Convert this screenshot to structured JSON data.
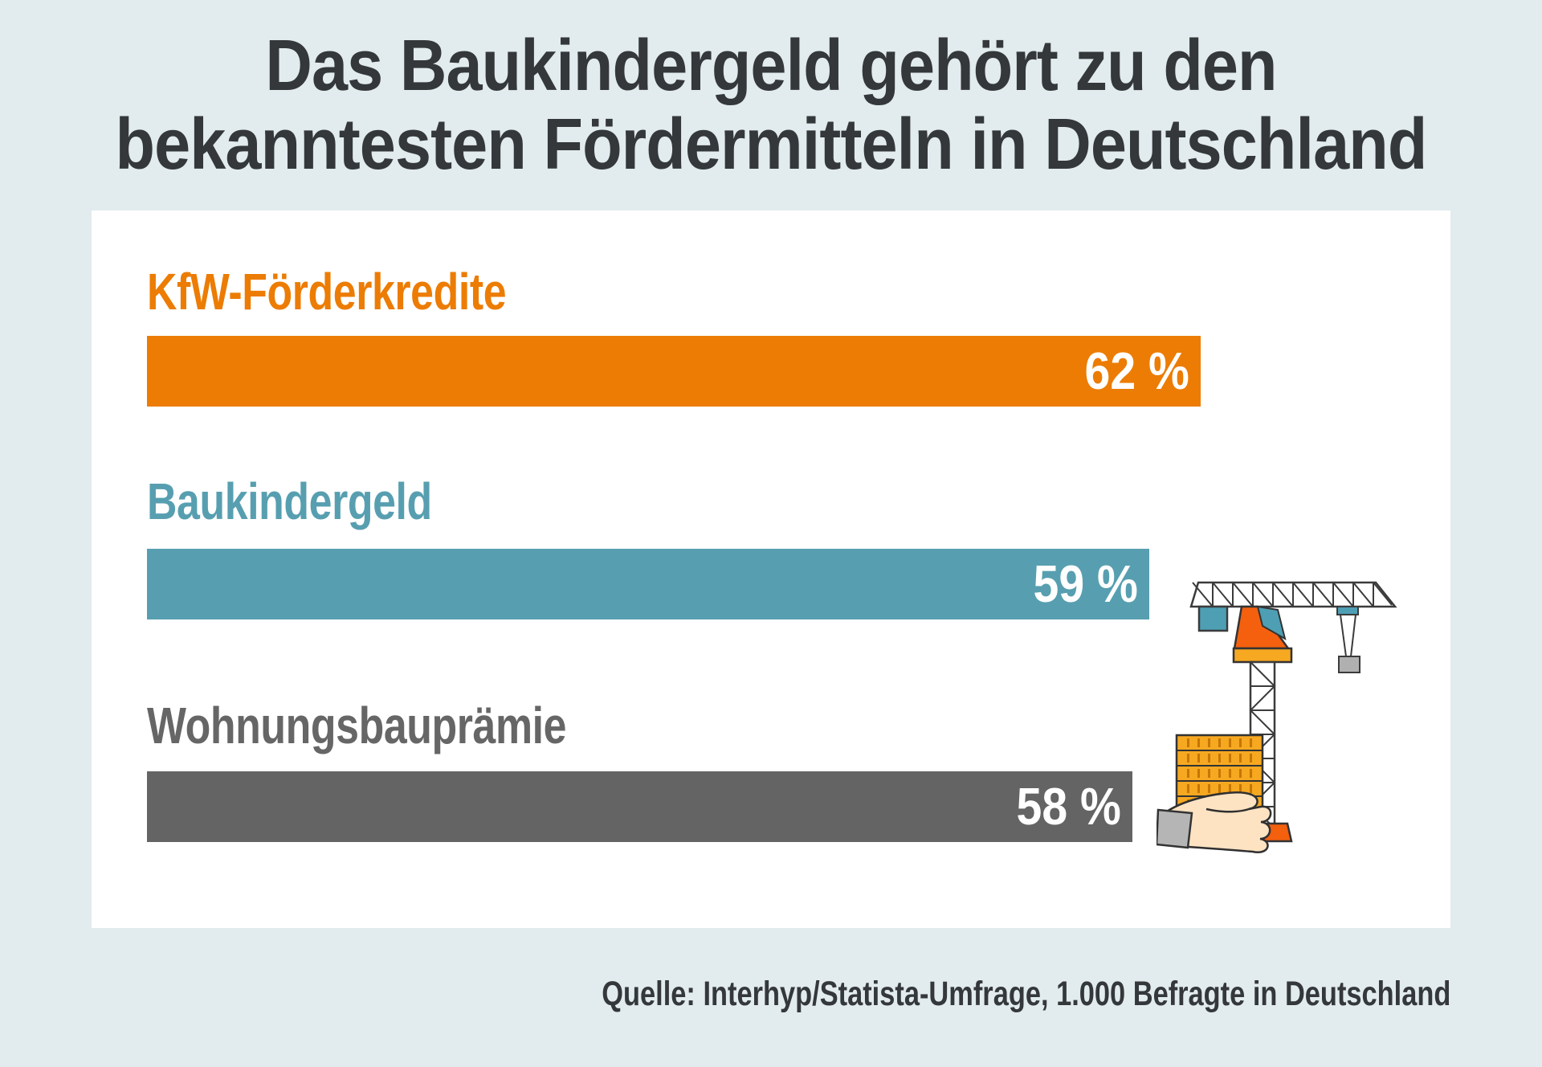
{
  "title": {
    "line1": "Das Baukindergeld gehört zu den",
    "line2": "bekanntesten Fördermitteln in Deutschland"
  },
  "source": "Quelle: Interhyp/Statista-Umfrage, 1.000 Befragte in Deutschland",
  "chart_data": {
    "type": "bar",
    "orientation": "horizontal",
    "title": "Das Baukindergeld gehört zu den bekanntesten Fördermitteln in Deutschland",
    "categories": [
      "KfW-Förderkredite",
      "Baukindergeld",
      "Wohnungsbauprämie"
    ],
    "values": [
      62,
      59,
      58
    ],
    "unit": "%",
    "value_labels": [
      "62 %",
      "59 %",
      "58 %"
    ],
    "colors": [
      "#ec7c04",
      "#579fb0",
      "#646464"
    ],
    "label_colors": [
      "#ec7c04",
      "#579fb0",
      "#666666"
    ],
    "xlim": [
      0,
      100
    ],
    "grid": false,
    "legend": false,
    "value_label_position": "inside-right",
    "source": "Quelle: Interhyp/Statista-Umfrage, 1.000 Befragte in Deutschland"
  },
  "colors": {
    "background": "#e2ebed",
    "card": "#ffffff",
    "title_text": "#34383b",
    "crane_orange": "#f4600e",
    "crane_amber": "#f6a821",
    "crane_teal": "#4e9fb4",
    "crane_gray": "#b0b0b0",
    "hand_skin": "#fde3c2"
  },
  "illustration": {
    "name": "construction-crane-with-hand-holding-bricks"
  }
}
